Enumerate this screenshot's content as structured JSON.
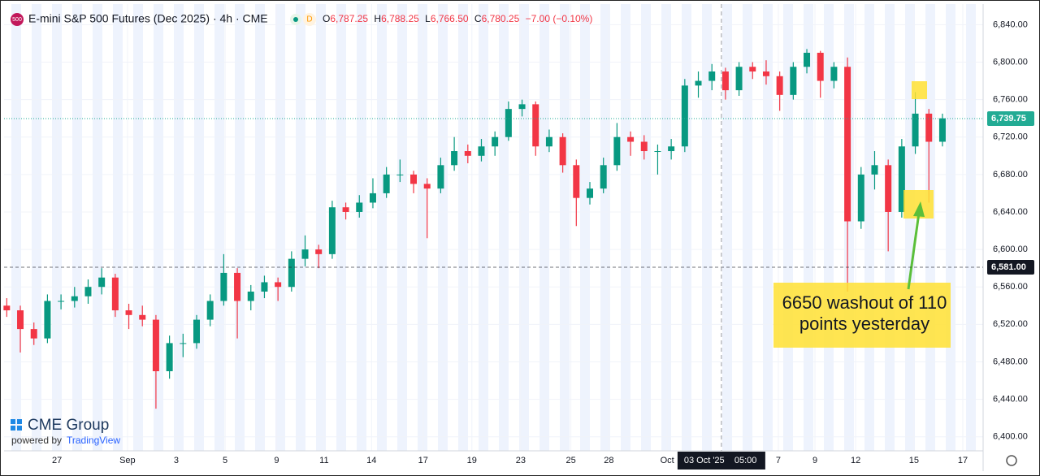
{
  "chart_data": {
    "type": "candlestick",
    "header": {
      "badge": "500",
      "title": "E-mini S&P 500 Futures (Dec 2025) · 4h · CME",
      "flag": "D",
      "o_label": "O",
      "o": "6,787.25",
      "h_label": "H",
      "h": "6,788.25",
      "l_label": "L",
      "l": "6,766.50",
      "c_label": "C",
      "c": "6,780.25",
      "change": "−7.00 (−0.10%)"
    },
    "up_color": "#089981",
    "down_color": "#f23645",
    "ohlc": [
      [
        6540,
        6548,
        6528,
        6535
      ],
      [
        6535,
        6540,
        6490,
        6515
      ],
      [
        6515,
        6522,
        6498,
        6505
      ],
      [
        6505,
        6552,
        6500,
        6545
      ],
      [
        6545,
        6552,
        6536,
        6545
      ],
      [
        6545,
        6560,
        6538,
        6550
      ],
      [
        6550,
        6568,
        6542,
        6560
      ],
      [
        6560,
        6580,
        6552,
        6570
      ],
      [
        6570,
        6574,
        6528,
        6535
      ],
      [
        6535,
        6542,
        6515,
        6530
      ],
      [
        6530,
        6540,
        6518,
        6525
      ],
      [
        6525,
        6530,
        6430,
        6470
      ],
      [
        6470,
        6508,
        6462,
        6500
      ],
      [
        6500,
        6510,
        6485,
        6500
      ],
      [
        6500,
        6530,
        6494,
        6525
      ],
      [
        6525,
        6552,
        6518,
        6545
      ],
      [
        6545,
        6595,
        6540,
        6575
      ],
      [
        6575,
        6580,
        6505,
        6545
      ],
      [
        6545,
        6562,
        6535,
        6555
      ],
      [
        6555,
        6572,
        6548,
        6565
      ],
      [
        6565,
        6570,
        6545,
        6560
      ],
      [
        6560,
        6598,
        6555,
        6590
      ],
      [
        6590,
        6615,
        6582,
        6600
      ],
      [
        6600,
        6605,
        6580,
        6595
      ],
      [
        6595,
        6652,
        6590,
        6645
      ],
      [
        6645,
        6650,
        6632,
        6640
      ],
      [
        6640,
        6658,
        6634,
        6650
      ],
      [
        6650,
        6676,
        6644,
        6660
      ],
      [
        6660,
        6688,
        6655,
        6680
      ],
      [
        6680,
        6696,
        6672,
        6680
      ],
      [
        6680,
        6684,
        6660,
        6670
      ],
      [
        6670,
        6676,
        6612,
        6665
      ],
      [
        6665,
        6698,
        6660,
        6690
      ],
      [
        6690,
        6720,
        6684,
        6705
      ],
      [
        6705,
        6712,
        6692,
        6700
      ],
      [
        6700,
        6718,
        6694,
        6710
      ],
      [
        6710,
        6726,
        6700,
        6720
      ],
      [
        6720,
        6758,
        6716,
        6750
      ],
      [
        6750,
        6760,
        6742,
        6755
      ],
      [
        6755,
        6758,
        6700,
        6710
      ],
      [
        6710,
        6728,
        6704,
        6720
      ],
      [
        6720,
        6724,
        6682,
        6690
      ],
      [
        6690,
        6696,
        6625,
        6655
      ],
      [
        6655,
        6672,
        6648,
        6665
      ],
      [
        6665,
        6698,
        6660,
        6690
      ],
      [
        6690,
        6735,
        6684,
        6720
      ],
      [
        6720,
        6726,
        6700,
        6715
      ],
      [
        6715,
        6722,
        6696,
        6705
      ],
      [
        6705,
        6712,
        6680,
        6705
      ],
      [
        6705,
        6718,
        6696,
        6710
      ],
      [
        6710,
        6782,
        6704,
        6775
      ],
      [
        6775,
        6790,
        6762,
        6780
      ],
      [
        6780,
        6798,
        6770,
        6790
      ],
      [
        6790,
        6794,
        6760,
        6770
      ],
      [
        6770,
        6800,
        6764,
        6795
      ],
      [
        6795,
        6800,
        6782,
        6790
      ],
      [
        6790,
        6802,
        6776,
        6785
      ],
      [
        6785,
        6790,
        6748,
        6765
      ],
      [
        6765,
        6800,
        6760,
        6795
      ],
      [
        6795,
        6814,
        6788,
        6810
      ],
      [
        6810,
        6812,
        6762,
        6780
      ],
      [
        6780,
        6800,
        6772,
        6795
      ],
      [
        6795,
        6805,
        6555,
        6630
      ],
      [
        6630,
        6688,
        6622,
        6680
      ],
      [
        6680,
        6705,
        6664,
        6690
      ],
      [
        6690,
        6696,
        6598,
        6640
      ],
      [
        6640,
        6718,
        6634,
        6710
      ],
      [
        6710,
        6768,
        6702,
        6745
      ],
      [
        6745,
        6750,
        6650,
        6715
      ],
      [
        6715,
        6745,
        6710,
        6740
      ]
    ],
    "xlim": [
      -0.2,
      72
    ],
    "ylim": [
      6385,
      6862
    ],
    "xticks": [
      {
        "value": 3.7,
        "label": "27"
      },
      {
        "value": 8.9,
        "label": "Sep"
      },
      {
        "value": 12.5,
        "label": "3"
      },
      {
        "value": 16.1,
        "label": "5"
      },
      {
        "value": 19.9,
        "label": "9"
      },
      {
        "value": 23.4,
        "label": "11"
      },
      {
        "value": 26.9,
        "label": "14"
      },
      {
        "value": 30.7,
        "label": "17"
      },
      {
        "value": 34.3,
        "label": "19"
      },
      {
        "value": 37.9,
        "label": "23"
      },
      {
        "value": 41.6,
        "label": "25"
      },
      {
        "value": 44.4,
        "label": "28"
      },
      {
        "value": 48.7,
        "label": "Oct"
      },
      {
        "value": 56.9,
        "label": "7"
      },
      {
        "value": 59.6,
        "label": "9"
      },
      {
        "value": 62.6,
        "label": "12"
      },
      {
        "value": 66.9,
        "label": "15"
      },
      {
        "value": 70.5,
        "label": "17"
      }
    ],
    "yticks": [
      {
        "value": 6400,
        "label": "6,400.00"
      },
      {
        "value": 6440,
        "label": "6,440.00"
      },
      {
        "value": 6480,
        "label": "6,480.00"
      },
      {
        "value": 6520,
        "label": "6,520.00"
      },
      {
        "value": 6560,
        "label": "6,560.00"
      },
      {
        "value": 6600,
        "label": "6,600.00"
      },
      {
        "value": 6640,
        "label": "6,640.00"
      },
      {
        "value": 6680,
        "label": "6,680.00"
      },
      {
        "value": 6720,
        "label": "6,720.00"
      },
      {
        "value": 6760,
        "label": "6,760.00"
      },
      {
        "value": 6800,
        "label": "6,800.00"
      },
      {
        "value": 6840,
        "label": "6,840.00"
      }
    ],
    "price_lines": [
      {
        "value": 6739.75,
        "label": "6,739.75",
        "color": "#22ab94"
      },
      {
        "value": 6581,
        "label": "6,581.00",
        "color": "#131722"
      }
    ],
    "crosshair": {
      "value": 52.7,
      "date": "03 Oct '25",
      "time": "05:00"
    },
    "annotation": {
      "lines": [
        "6650 washout of 110",
        "points yesterday"
      ]
    },
    "logo": {
      "name": "CME Group",
      "powered": "powered by",
      "brand": "TradingView"
    },
    "grid": true
  }
}
